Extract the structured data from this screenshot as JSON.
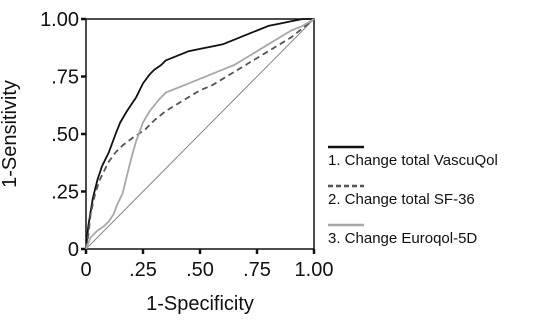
{
  "chart_data": {
    "type": "line",
    "title": "",
    "xlabel": "1-Specificity",
    "ylabel": "1-Sensitivity",
    "xlim": [
      0,
      1
    ],
    "ylim": [
      0,
      1
    ],
    "grid": false,
    "legend_position": "right",
    "x_ticks": [
      {
        "value": 0,
        "label": "0"
      },
      {
        "value": 0.25,
        "label": ".25"
      },
      {
        "value": 0.5,
        "label": ".50"
      },
      {
        "value": 0.75,
        "label": ".75"
      },
      {
        "value": 1,
        "label": "1.00"
      }
    ],
    "y_ticks": [
      {
        "value": 0,
        "label": "0"
      },
      {
        "value": 0.25,
        "label": ".25"
      },
      {
        "value": 0.5,
        "label": ".50"
      },
      {
        "value": 0.75,
        "label": ".75"
      },
      {
        "value": 1,
        "label": "1.00"
      }
    ],
    "series": [
      {
        "name": "1. Change total VascuQol",
        "color": "#111111",
        "style": "solid",
        "points": [
          [
            0,
            0
          ],
          [
            0.01,
            0.1
          ],
          [
            0.03,
            0.22
          ],
          [
            0.05,
            0.3
          ],
          [
            0.07,
            0.36
          ],
          [
            0.1,
            0.42
          ],
          [
            0.13,
            0.5
          ],
          [
            0.15,
            0.55
          ],
          [
            0.18,
            0.6
          ],
          [
            0.2,
            0.63
          ],
          [
            0.22,
            0.66
          ],
          [
            0.25,
            0.72
          ],
          [
            0.28,
            0.76
          ],
          [
            0.3,
            0.78
          ],
          [
            0.33,
            0.8
          ],
          [
            0.35,
            0.82
          ],
          [
            0.4,
            0.84
          ],
          [
            0.45,
            0.86
          ],
          [
            0.5,
            0.87
          ],
          [
            0.55,
            0.88
          ],
          [
            0.6,
            0.89
          ],
          [
            0.65,
            0.91
          ],
          [
            0.7,
            0.93
          ],
          [
            0.75,
            0.95
          ],
          [
            0.8,
            0.97
          ],
          [
            0.85,
            0.98
          ],
          [
            0.9,
            0.99
          ],
          [
            0.95,
            1.0
          ],
          [
            1,
            1
          ]
        ]
      },
      {
        "name": "2. Change total SF-36",
        "color": "#555555",
        "style": "dashed",
        "points": [
          [
            0,
            0
          ],
          [
            0.01,
            0.06
          ],
          [
            0.02,
            0.15
          ],
          [
            0.04,
            0.24
          ],
          [
            0.06,
            0.3
          ],
          [
            0.08,
            0.34
          ],
          [
            0.1,
            0.38
          ],
          [
            0.13,
            0.42
          ],
          [
            0.16,
            0.45
          ],
          [
            0.2,
            0.48
          ],
          [
            0.23,
            0.5
          ],
          [
            0.26,
            0.52
          ],
          [
            0.3,
            0.56
          ],
          [
            0.35,
            0.6
          ],
          [
            0.4,
            0.63
          ],
          [
            0.45,
            0.66
          ],
          [
            0.5,
            0.69
          ],
          [
            0.55,
            0.71
          ],
          [
            0.6,
            0.74
          ],
          [
            0.65,
            0.77
          ],
          [
            0.7,
            0.8
          ],
          [
            0.75,
            0.83
          ],
          [
            0.8,
            0.86
          ],
          [
            0.85,
            0.89
          ],
          [
            0.9,
            0.92
          ],
          [
            0.95,
            0.96
          ],
          [
            1,
            1
          ]
        ]
      },
      {
        "name": "3. Change Euroqol-5D",
        "color": "#a8a8a8",
        "style": "solid",
        "points": [
          [
            0,
            0
          ],
          [
            0.02,
            0.05
          ],
          [
            0.05,
            0.08
          ],
          [
            0.08,
            0.1
          ],
          [
            0.1,
            0.12
          ],
          [
            0.12,
            0.15
          ],
          [
            0.14,
            0.2
          ],
          [
            0.16,
            0.24
          ],
          [
            0.18,
            0.32
          ],
          [
            0.2,
            0.4
          ],
          [
            0.22,
            0.47
          ],
          [
            0.25,
            0.55
          ],
          [
            0.28,
            0.6
          ],
          [
            0.32,
            0.65
          ],
          [
            0.35,
            0.68
          ],
          [
            0.4,
            0.7
          ],
          [
            0.45,
            0.72
          ],
          [
            0.5,
            0.74
          ],
          [
            0.55,
            0.76
          ],
          [
            0.6,
            0.78
          ],
          [
            0.65,
            0.8
          ],
          [
            0.7,
            0.83
          ],
          [
            0.75,
            0.86
          ],
          [
            0.8,
            0.89
          ],
          [
            0.85,
            0.92
          ],
          [
            0.9,
            0.95
          ],
          [
            0.95,
            0.97
          ],
          [
            1,
            1
          ]
        ]
      }
    ]
  }
}
